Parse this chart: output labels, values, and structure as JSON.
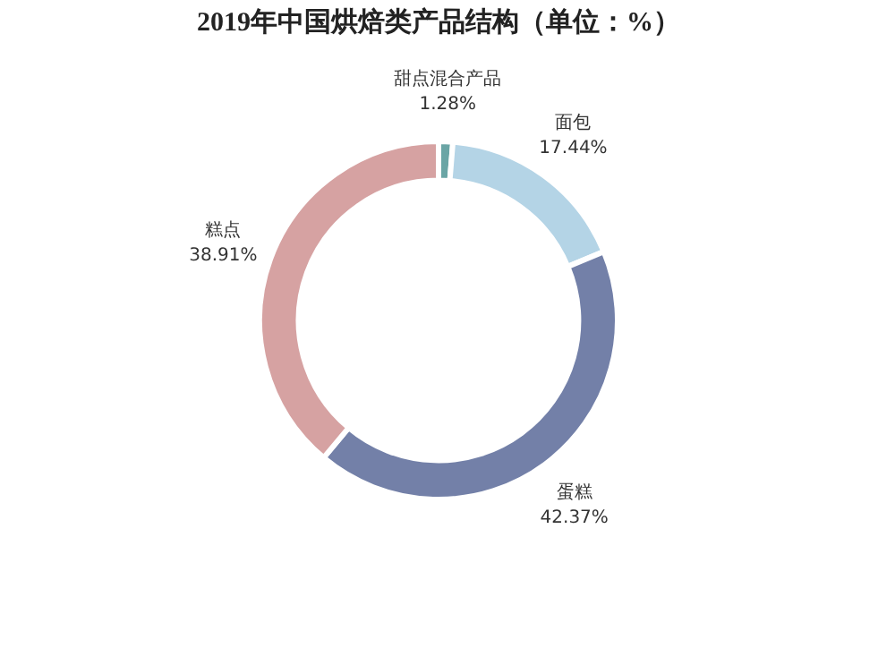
{
  "chart_data": {
    "type": "donut",
    "title": "2019年中国烘焙类产品结构（单位：%）",
    "categories": [
      "甜点混合产品",
      "面包",
      "蛋糕",
      "糕点"
    ],
    "values": [
      1.28,
      17.44,
      42.37,
      38.91
    ],
    "colors": [
      "#6aa5a5",
      "#b4d4e6",
      "#7380a8",
      "#d6a2a2"
    ],
    "value_labels": [
      "1.28%",
      "17.44%",
      "42.37%",
      "38.91%"
    ]
  }
}
